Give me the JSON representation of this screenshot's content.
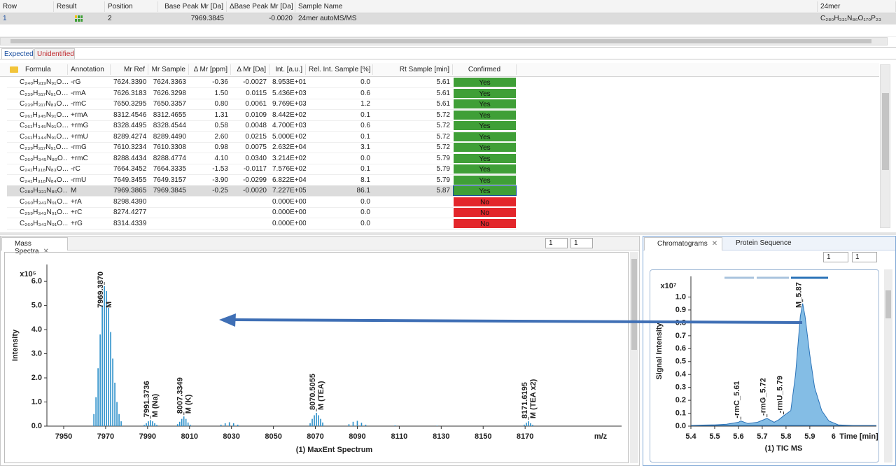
{
  "top_table": {
    "headers": [
      "Row",
      "Result",
      "Position",
      "Base Peak Mr [Da]",
      "ΔBase Peak Mr [Da]",
      "Sample Name",
      "24mer"
    ],
    "rows": [
      [
        "1",
        null,
        "2",
        "7969.3845",
        "-0.0020",
        "24mer autoMS/MS",
        "C₂₈₀H₃₃₁N₈₆O₁₇₀P₂₃"
      ]
    ]
  },
  "tabs": [
    "Expected",
    "Unidentified"
  ],
  "formula_table": {
    "headers": [
      "Formula",
      "Annotation",
      "Mr Ref",
      "Mr Sample",
      "Δ Mr [ppm]",
      "Δ Mr [Da]",
      "Int. [a.u.]",
      "Rel. Int. Sample [%]",
      "Rt Sample [min]",
      "Confirmed"
    ],
    "confirmed_colors": {
      "Yes": "#3f9f37",
      "No": "#e3262b"
    },
    "rows": [
      [
        "C₂₄₀H₃₁₉N₉₁O…",
        "-rG",
        "7624.3390",
        "7624.3363",
        "-0.36",
        "-0.0027",
        "8.953E+01",
        "0.0",
        "5.61",
        "Yes"
      ],
      [
        "C₂₃₉H₃₁₇N₉₁O…",
        "-rmA",
        "7626.3183",
        "7626.3298",
        "1.50",
        "0.0115",
        "5.436E+03",
        "0.6",
        "5.61",
        "Yes"
      ],
      [
        "C₂₃₉H₃₁₇N₈₃O…",
        "-rmC",
        "7650.3295",
        "7650.3357",
        "0.80",
        "0.0061",
        "9.769E+03",
        "1.2",
        "5.61",
        "Yes"
      ],
      [
        "C₂₆₁H₃₄₅N₉₁O…",
        "+rmA",
        "8312.4546",
        "8312.4655",
        "1.31",
        "0.0109",
        "8.442E+02",
        "0.1",
        "5.72",
        "Yes"
      ],
      [
        "C₂₆₁H₃₄₅N₉₁O…",
        "+rmG",
        "8328.4495",
        "8328.4544",
        "0.58",
        "0.0048",
        "4.700E+03",
        "0.6",
        "5.72",
        "Yes"
      ],
      [
        "C₂₆₁H₃₄₄N₉₁O…",
        "+rmU",
        "8289.4274",
        "8289.4490",
        "2.60",
        "0.0215",
        "5.000E+02",
        "0.1",
        "5.72",
        "Yes"
      ],
      [
        "C₂₃₉H₃₁₇N₉₁O…",
        "-rmG",
        "7610.3234",
        "7610.3308",
        "0.98",
        "0.0075",
        "2.632E+04",
        "3.1",
        "5.72",
        "Yes"
      ],
      [
        "C₂₆₀H₃₄₅N₈₉O…",
        "+rmC",
        "8288.4434",
        "8288.4774",
        "4.10",
        "0.0340",
        "3.214E+02",
        "0.0",
        "5.79",
        "Yes"
      ],
      [
        "C₂₄₁H₃₁₈N₈₃O…",
        "-rC",
        "7664.3452",
        "7664.3335",
        "-1.53",
        "-0.0117",
        "7.576E+02",
        "0.1",
        "5.79",
        "Yes"
      ],
      [
        "C₂₄₁H₃₁₈N₈₄O…",
        "-rmU",
        "7649.3455",
        "7649.3157",
        "-3.90",
        "-0.0299",
        "6.822E+04",
        "8.1",
        "5.79",
        "Yes"
      ],
      [
        "C₂₈₀H₃₃₁N₈₆O…",
        "M",
        "7969.3865",
        "7969.3845",
        "-0.25",
        "-0.0020",
        "7.227E+05",
        "86.1",
        "5.87",
        "Yes"
      ],
      [
        "C₂₆₀H₃₄₃N₉₁O…",
        "+rA",
        "8298.4390",
        null,
        null,
        null,
        "0.000E+00",
        "0.0",
        null,
        "No"
      ],
      [
        "C₂₅₉H₃₄₃N₉₁O…",
        "+rC",
        "8274.4277",
        null,
        null,
        null,
        "0.000E+00",
        "0.0",
        null,
        "No"
      ],
      [
        "C₂₆₀H₃₄₃N₉₁O…",
        "+rG",
        "8314.4339",
        null,
        null,
        null,
        "0.000E+00",
        "0.0",
        null,
        "No"
      ]
    ]
  },
  "panels": {
    "mass_spectra": "Mass Spectra",
    "chromatograms": "Chromatograms",
    "protein_sequence": "Protein Sequence"
  },
  "spinners": [
    "1",
    "1",
    "1",
    "1"
  ],
  "chart_data": [
    {
      "type": "stem",
      "title": "(1) MaxEnt Spectrum",
      "x_label": "m/z",
      "y_label": "Intensity",
      "y_exponent": "x10⁵",
      "color": "#2a8fca",
      "x": [
        7964.4,
        7965.4,
        7966.4,
        7967.4,
        7968.4,
        7969.4,
        7970.4,
        7971.4,
        7972.4,
        7973.4,
        7974.4,
        7975.4,
        7976.4,
        7977.4,
        7988.4,
        7989.4,
        7990.4,
        7991.4,
        7992.4,
        7993.4,
        7994.4,
        8004.3,
        8005.3,
        8006.3,
        8007.3,
        8008.3,
        8009.3,
        8010.3,
        8025,
        8027,
        8029,
        8031,
        8033,
        8067.5,
        8068.5,
        8069.5,
        8070.5,
        8071.5,
        8072.5,
        8073.5,
        8086,
        8088,
        8090,
        8092,
        8094,
        8108,
        8128,
        8169.6,
        8170.6,
        8171.6,
        8172.6,
        8173.6
      ],
      "values": [
        0.5,
        1.2,
        2.4,
        3.8,
        5.0,
        5.8,
        5.6,
        4.9,
        3.9,
        2.8,
        1.8,
        1.0,
        0.5,
        0.2,
        0.05,
        0.12,
        0.2,
        0.25,
        0.2,
        0.12,
        0.05,
        0.08,
        0.18,
        0.3,
        0.4,
        0.3,
        0.15,
        0.06,
        0.06,
        0.12,
        0.16,
        0.12,
        0.06,
        0.12,
        0.3,
        0.45,
        0.55,
        0.45,
        0.3,
        0.15,
        0.08,
        0.18,
        0.22,
        0.14,
        0.06,
        0.03,
        0.02,
        0.06,
        0.14,
        0.2,
        0.12,
        0.05
      ],
      "xlim": [
        7942,
        8216
      ],
      "xticks": [
        7950,
        7970,
        7990,
        8010,
        8030,
        8050,
        8070,
        8090,
        8110,
        8130,
        8150,
        8170
      ],
      "ylim": [
        0,
        6.7
      ],
      "yticks": [
        {
          "value": 0,
          "label": "0.0"
        },
        {
          "value": 1,
          "label": "1.0"
        },
        {
          "value": 2,
          "label": "2.0"
        },
        {
          "value": 3,
          "label": "3.0"
        },
        {
          "value": 4,
          "label": "4.0"
        },
        {
          "value": 5,
          "label": "5.0"
        },
        {
          "value": 6,
          "label": "6.0"
        }
      ],
      "annotations": [
        {
          "value": 7969.387,
          "label": "7969.3870",
          "name": "M"
        },
        {
          "value": 7991.3736,
          "label": "7991.3736",
          "name": "M (Na)"
        },
        {
          "value": 8007.3349,
          "label": "8007.3349",
          "name": "M (K)"
        },
        {
          "value": 8070.5055,
          "label": "8070.5055",
          "name": "M (TEA)"
        },
        {
          "value": 8171.6195,
          "label": "8171.6195",
          "name": "M (TEA x2)"
        }
      ]
    },
    {
      "type": "area",
      "title": "(1) TIC MS",
      "x_label": "Time [min]",
      "y_label": "Signal Intensity",
      "y_exponent": "x10⁷",
      "color": "#5ba7dc",
      "x": [
        5.4,
        5.45,
        5.5,
        5.55,
        5.6,
        5.61,
        5.64,
        5.68,
        5.72,
        5.75,
        5.77,
        5.79,
        5.82,
        5.84,
        5.86,
        5.87,
        5.88,
        5.9,
        5.92,
        5.95,
        5.98,
        6.02,
        6.08,
        6.18
      ],
      "values": [
        0.005,
        0.008,
        0.01,
        0.015,
        0.03,
        0.04,
        0.02,
        0.03,
        0.06,
        0.03,
        0.05,
        0.08,
        0.12,
        0.4,
        0.85,
        0.95,
        0.85,
        0.55,
        0.3,
        0.12,
        0.04,
        0.01,
        0.005,
        0.005
      ],
      "xlim": [
        5.4,
        6.18
      ],
      "xticks": [
        5.4,
        5.5,
        5.6,
        5.7,
        5.8,
        5.9,
        6
      ],
      "ylim": [
        0,
        1.16
      ],
      "yticks": [
        {
          "value": 0,
          "label": "0.0"
        },
        0.1,
        0.2,
        0.3,
        0.4,
        0.5,
        0.6,
        0.7,
        0.8,
        0.9,
        {
          "value": 1,
          "label": "1.0"
        }
      ],
      "annotations": [
        {
          "value": 5.61,
          "label": "-rmC_5.61"
        },
        {
          "value": 5.72,
          "label": "-rmG_5.72"
        },
        {
          "value": 5.79,
          "label": "-rmU_5.79"
        },
        {
          "value": 5.87,
          "label": "M_5.87"
        }
      ]
    }
  ]
}
